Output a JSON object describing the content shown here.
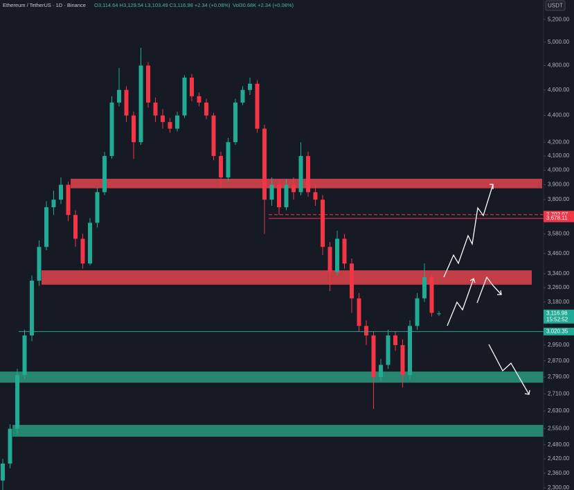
{
  "header": {
    "symbol": "Ethereum / TetherUS · 1D · Binance",
    "ohlc": "O3,114.64 H3,129.54 L3,103.49 C3,116.98 +2.34 (+0.08%)",
    "volume": "Vol30.68K +2.34 (+0.08%)"
  },
  "chart_data": {
    "type": "candlestick",
    "currency": "USDT",
    "log_scale": true,
    "ylim": [
      2292,
      5380
    ],
    "yticks": [
      {
        "value": 5200,
        "label": "5,200.00"
      },
      {
        "value": 5000,
        "label": "5,000.00"
      },
      {
        "value": 4800,
        "label": "4,800.00"
      },
      {
        "value": 4600,
        "label": "4,600.00"
      },
      {
        "value": 4400,
        "label": "4,400.00"
      },
      {
        "value": 4200,
        "label": "4,200.00"
      },
      {
        "value": 4100,
        "label": "4,100.00"
      },
      {
        "value": 4000,
        "label": "4,000.00"
      },
      {
        "value": 3900,
        "label": "3,900.00"
      },
      {
        "value": 3800,
        "label": "3,800.00"
      },
      {
        "value": 3580,
        "label": "3,580.00"
      },
      {
        "value": 3460,
        "label": "3,460.00"
      },
      {
        "value": 3340,
        "label": "3,340.00"
      },
      {
        "value": 3260,
        "label": "3,260.00"
      },
      {
        "value": 3180,
        "label": "3,180.00"
      },
      {
        "value": 2950,
        "label": "2,950.00"
      },
      {
        "value": 2870,
        "label": "2,870.00"
      },
      {
        "value": 2790,
        "label": "2,790.00"
      },
      {
        "value": 2710,
        "label": "2,710.00"
      },
      {
        "value": 2630,
        "label": "2,630.00"
      },
      {
        "value": 2550,
        "label": "2,550.00"
      },
      {
        "value": 2480,
        "label": "2,480.00"
      },
      {
        "value": 2420,
        "label": "2,420.00"
      },
      {
        "value": 2360,
        "label": "2,360.00"
      },
      {
        "value": 2300,
        "label": "2,300.00"
      }
    ],
    "up_color": "#22ab94",
    "down_color": "#f23645",
    "ohlc": [
      [
        2330,
        2420,
        2290,
        2400
      ],
      [
        2400,
        2570,
        2380,
        2550
      ],
      [
        2550,
        2830,
        2530,
        2800
      ],
      [
        2800,
        3030,
        2780,
        3000
      ],
      [
        3000,
        3330,
        2970,
        3300
      ],
      [
        3300,
        3540,
        3270,
        3500
      ],
      [
        3500,
        3790,
        3480,
        3750
      ],
      [
        3750,
        3860,
        3700,
        3800
      ],
      [
        3800,
        3950,
        3770,
        3900
      ],
      [
        3900,
        3920,
        3660,
        3700
      ],
      [
        3700,
        3730,
        3500,
        3550
      ],
      [
        3550,
        3580,
        3370,
        3400
      ],
      [
        3400,
        3680,
        3390,
        3650
      ],
      [
        3650,
        3880,
        3620,
        3850
      ],
      [
        3850,
        4130,
        3830,
        4100
      ],
      [
        4100,
        4550,
        4080,
        4500
      ],
      [
        4500,
        4780,
        4470,
        4600
      ],
      [
        4600,
        4630,
        4350,
        4400
      ],
      [
        4400,
        4430,
        4080,
        4200
      ],
      [
        4200,
        4950,
        4180,
        4800
      ],
      [
        4800,
        4830,
        4460,
        4500
      ],
      [
        4500,
        4540,
        4350,
        4400
      ],
      [
        4400,
        4450,
        4300,
        4350
      ],
      [
        4350,
        4380,
        4270,
        4300
      ],
      [
        4300,
        4430,
        4280,
        4400
      ],
      [
        4400,
        4720,
        4380,
        4700
      ],
      [
        4700,
        4730,
        4510,
        4550
      ],
      [
        4550,
        4580,
        4470,
        4500
      ],
      [
        4500,
        4530,
        4370,
        4400
      ],
      [
        4400,
        4420,
        4070,
        4100
      ],
      [
        4100,
        4130,
        3880,
        3950
      ],
      [
        3950,
        4230,
        3920,
        4200
      ],
      [
        4200,
        4530,
        4180,
        4500
      ],
      [
        4500,
        4630,
        4480,
        4600
      ],
      [
        4600,
        4700,
        4560,
        4650
      ],
      [
        4650,
        4680,
        4270,
        4300
      ],
      [
        4300,
        4330,
        3580,
        3800
      ],
      [
        3800,
        3950,
        3760,
        3900
      ],
      [
        3900,
        3930,
        3700,
        3750
      ],
      [
        3750,
        3940,
        3730,
        3900
      ],
      [
        3900,
        3950,
        3800,
        3850
      ],
      [
        3850,
        4200,
        3830,
        4100
      ],
      [
        4100,
        4130,
        3820,
        3850
      ],
      [
        3850,
        3900,
        3760,
        3800
      ],
      [
        3800,
        3830,
        3450,
        3500
      ],
      [
        3500,
        3530,
        3240,
        3350
      ],
      [
        3350,
        3600,
        3330,
        3550
      ],
      [
        3550,
        3580,
        3370,
        3400
      ],
      [
        3400,
        3430,
        3120,
        3200
      ],
      [
        3200,
        3230,
        3020,
        3050
      ],
      [
        3050,
        3080,
        2950,
        3000
      ],
      [
        3000,
        3020,
        2640,
        2790
      ],
      [
        2790,
        2880,
        2770,
        2850
      ],
      [
        2850,
        3030,
        2830,
        3000
      ],
      [
        3000,
        3020,
        2920,
        2950
      ],
      [
        2950,
        2980,
        2740,
        2800
      ],
      [
        2800,
        3080,
        2780,
        3050
      ],
      [
        3050,
        3230,
        3030,
        3200
      ],
      [
        3200,
        3400,
        3180,
        3320
      ],
      [
        3320,
        3340,
        3100,
        3120
      ],
      [
        3114.64,
        3129.54,
        3103.49,
        3116.98
      ]
    ],
    "zones": [
      {
        "low": 3876,
        "high": 3941,
        "color": "#e0444b"
      },
      {
        "low": 3277,
        "high": 3360,
        "color": "#e0444b"
      },
      {
        "low": 2763,
        "high": 2817,
        "color": "#2a9a7c"
      },
      {
        "low": 2515,
        "high": 2567,
        "color": "#2a9a7c"
      }
    ],
    "levels": [
      {
        "value": 3702.07,
        "label": "3,702.07",
        "color": "#f23645",
        "style": "dashed"
      },
      {
        "value": 3678.11,
        "label": "3,678.11",
        "color": "#f23645",
        "style": "solid"
      },
      {
        "value": 3116.98,
        "label": "3,116.98",
        "countdown": "15:52:52",
        "color": "#22ab94",
        "style": "none"
      },
      {
        "value": 3020.35,
        "label": "3,020.35",
        "color": "#22ab94",
        "style": "solid"
      }
    ]
  }
}
